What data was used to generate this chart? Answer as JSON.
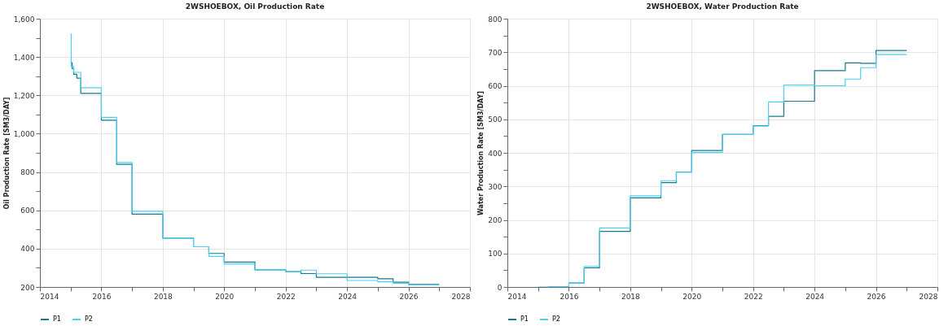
{
  "chart_data": [
    {
      "type": "step",
      "title": "2WSHOEBOX, Oil Production Rate",
      "ylabel": "Oil Production Rate [SM3/DAY]",
      "xlim": [
        2014,
        2028
      ],
      "xticks": [
        2014,
        {
          "value": 2015,
          "label": null
        },
        2016,
        {
          "value": 2017,
          "label": null
        },
        2018,
        {
          "value": 2019,
          "label": null
        },
        2020,
        {
          "value": 2021,
          "label": null
        },
        2022,
        {
          "value": 2023,
          "label": null
        },
        2024,
        {
          "value": 2025,
          "label": null
        },
        2026,
        {
          "value": 2027,
          "label": null
        },
        2028
      ],
      "ylim": [
        200,
        1600
      ],
      "yticks": [
        {
          "value": 200,
          "label": "200"
        },
        {
          "value": 300,
          "label": null
        },
        {
          "value": 400,
          "label": "400"
        },
        {
          "value": 500,
          "label": null
        },
        {
          "value": 600,
          "label": "600"
        },
        {
          "value": 700,
          "label": null
        },
        {
          "value": 800,
          "label": "800"
        },
        {
          "value": 900,
          "label": null
        },
        {
          "value": 1000,
          "label": "1,000"
        },
        {
          "value": 1100,
          "label": null
        },
        {
          "value": 1200,
          "label": "1,200"
        },
        {
          "value": 1300,
          "label": null
        },
        {
          "value": 1400,
          "label": "1,400"
        },
        {
          "value": 1500,
          "label": null
        },
        {
          "value": 1600,
          "label": "1,600"
        }
      ],
      "grid": true,
      "legend": "bottom",
      "series": [
        {
          "name": "P1",
          "color": "#17788a",
          "x": [
            2015,
            2015.05,
            2015.1,
            2015.2,
            2015.33,
            2016,
            2016.5,
            2017,
            2018,
            2019,
            2019.5,
            2020,
            2021,
            2022,
            2022.5,
            2023,
            2024,
            2025,
            2025.5,
            2026,
            2027
          ],
          "values": [
            1370,
            1340,
            1310,
            1290,
            1210,
            1070,
            840,
            580,
            455,
            410,
            375,
            330,
            290,
            280,
            270,
            250,
            250,
            243,
            225,
            213,
            213
          ]
        },
        {
          "name": "P2",
          "color": "#4dcff5",
          "x": [
            2015,
            2015.02,
            2015.1,
            2015.33,
            2016,
            2016.5,
            2017,
            2018,
            2019,
            2019.5,
            2020,
            2021,
            2022,
            2022.5,
            2023,
            2024,
            2025,
            2025.5,
            2026,
            2027
          ],
          "values": [
            1520,
            1350,
            1320,
            1240,
            1085,
            850,
            595,
            455,
            410,
            360,
            320,
            290,
            280,
            288,
            269,
            234,
            227,
            220,
            211,
            211
          ]
        }
      ]
    },
    {
      "type": "step",
      "title": "2WSHOEBOX, Water Production Rate",
      "ylabel": "Water Production Rate [SM3/DAY]",
      "xlim": [
        2014,
        2028
      ],
      "xticks": [
        2014,
        {
          "value": 2015,
          "label": null
        },
        2016,
        {
          "value": 2017,
          "label": null
        },
        2018,
        {
          "value": 2019,
          "label": null
        },
        2020,
        {
          "value": 2021,
          "label": null
        },
        2022,
        {
          "value": 2023,
          "label": null
        },
        2024,
        {
          "value": 2025,
          "label": null
        },
        2026,
        {
          "value": 2027,
          "label": null
        },
        2028
      ],
      "ylim": [
        0,
        800
      ],
      "yticks": [
        0,
        {
          "value": 50,
          "label": null
        },
        100,
        {
          "value": 150,
          "label": null
        },
        200,
        {
          "value": 250,
          "label": null
        },
        300,
        {
          "value": 350,
          "label": null
        },
        400,
        {
          "value": 450,
          "label": null
        },
        500,
        {
          "value": 550,
          "label": null
        },
        600,
        {
          "value": 650,
          "label": null
        },
        700,
        {
          "value": 750,
          "label": null
        },
        800
      ],
      "grid": true,
      "legend": "bottom",
      "series": [
        {
          "name": "P1",
          "color": "#17788a",
          "x": [
            2016,
            2016.5,
            2017,
            2018,
            2019,
            2019.5,
            2020,
            2021,
            2022,
            2022.5,
            2023,
            2024,
            2025,
            2025.5,
            2026,
            2027
          ],
          "values": [
            12,
            57,
            166,
            266,
            311,
            343,
            407,
            455,
            481,
            509,
            554,
            645,
            668,
            667,
            705,
            705
          ]
        },
        {
          "name": "P2",
          "color": "#4dcff5",
          "x": [
            2015,
            2015.33,
            2016,
            2016.5,
            2017,
            2018,
            2019,
            2019.5,
            2020,
            2021,
            2022,
            2022.5,
            2023,
            2024,
            2025,
            2025.5,
            2026,
            2027
          ],
          "values": [
            0,
            1,
            12,
            61,
            176,
            272,
            317,
            342,
            401,
            455,
            480,
            552,
            602,
            600,
            620,
            654,
            693,
            693
          ]
        }
      ]
    }
  ]
}
